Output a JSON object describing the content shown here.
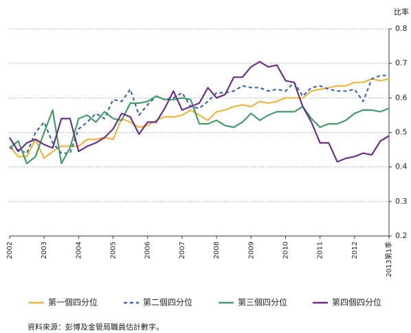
{
  "chart_data": {
    "type": "line",
    "ylabel": "比率",
    "source": "資料來源：彭博及金管局職員估計數字。",
    "categories": [
      "2002",
      null,
      null,
      null,
      "2003",
      null,
      null,
      null,
      "2004",
      null,
      null,
      null,
      "2005",
      null,
      null,
      null,
      "2006",
      null,
      null,
      null,
      "2007",
      null,
      null,
      null,
      "2008",
      null,
      null,
      null,
      "2009",
      null,
      null,
      null,
      "2010",
      null,
      null,
      null,
      "2011",
      null,
      null,
      null,
      "2012",
      null,
      null,
      null,
      "2013第1季"
    ],
    "ylim": [
      0.2,
      0.8
    ],
    "yticks": [
      0.2,
      0.3,
      0.4,
      0.5,
      0.6,
      0.7,
      0.8
    ],
    "grid": true,
    "legend": "bottom",
    "series": [
      {
        "name": "第一個四分位",
        "color": "#f0b63c",
        "dash": false,
        "values": [
          0.46,
          0.43,
          0.43,
          0.48,
          0.425,
          0.445,
          0.46,
          0.46,
          0.46,
          0.48,
          0.48,
          0.485,
          0.48,
          0.54,
          0.53,
          0.515,
          0.52,
          0.535,
          0.545,
          0.545,
          0.55,
          0.565,
          0.55,
          0.535,
          0.56,
          0.565,
          0.575,
          0.58,
          0.575,
          0.59,
          0.585,
          0.59,
          0.6,
          0.6,
          0.6,
          0.62,
          0.625,
          0.63,
          0.635,
          0.635,
          0.645,
          0.645,
          0.655,
          0.65,
          0.655
        ]
      },
      {
        "name": "第二個四分位",
        "color": "#3b66b2",
        "dash": true,
        "values": [
          0.455,
          0.45,
          0.44,
          0.5,
          0.53,
          0.47,
          0.44,
          0.44,
          0.51,
          0.53,
          0.555,
          0.54,
          0.595,
          0.59,
          0.625,
          0.55,
          0.58,
          0.605,
          0.595,
          0.6,
          0.615,
          0.575,
          0.57,
          0.59,
          0.615,
          0.615,
          0.62,
          0.635,
          0.63,
          0.63,
          0.62,
          0.625,
          0.62,
          0.645,
          0.605,
          0.63,
          0.635,
          0.625,
          0.62,
          0.62,
          0.625,
          0.59,
          0.655,
          0.665,
          0.665
        ]
      },
      {
        "name": "第三個四分位",
        "color": "#3f9d6a",
        "dash": false,
        "values": [
          0.455,
          0.475,
          0.41,
          0.43,
          0.5,
          0.565,
          0.41,
          0.455,
          0.54,
          0.55,
          0.53,
          0.56,
          0.54,
          0.535,
          0.585,
          0.585,
          0.59,
          0.605,
          0.595,
          0.595,
          0.6,
          0.595,
          0.525,
          0.525,
          0.535,
          0.52,
          0.515,
          0.53,
          0.555,
          0.535,
          0.55,
          0.56,
          0.56,
          0.56,
          0.575,
          0.54,
          0.515,
          0.525,
          0.525,
          0.535,
          0.555,
          0.565,
          0.565,
          0.56,
          0.57
        ]
      },
      {
        "name": "第四個四分位",
        "color": "#6a2e8a",
        "dash": false,
        "values": [
          0.485,
          0.445,
          0.47,
          0.48,
          0.465,
          0.455,
          0.54,
          0.54,
          0.445,
          0.46,
          0.47,
          0.485,
          0.51,
          0.555,
          0.545,
          0.495,
          0.53,
          0.53,
          0.57,
          0.62,
          0.565,
          0.575,
          0.585,
          0.63,
          0.6,
          0.61,
          0.66,
          0.66,
          0.69,
          0.705,
          0.69,
          0.695,
          0.65,
          0.645,
          0.575,
          0.53,
          0.47,
          0.47,
          0.415,
          0.425,
          0.43,
          0.44,
          0.435,
          0.475,
          0.49
        ]
      }
    ]
  }
}
